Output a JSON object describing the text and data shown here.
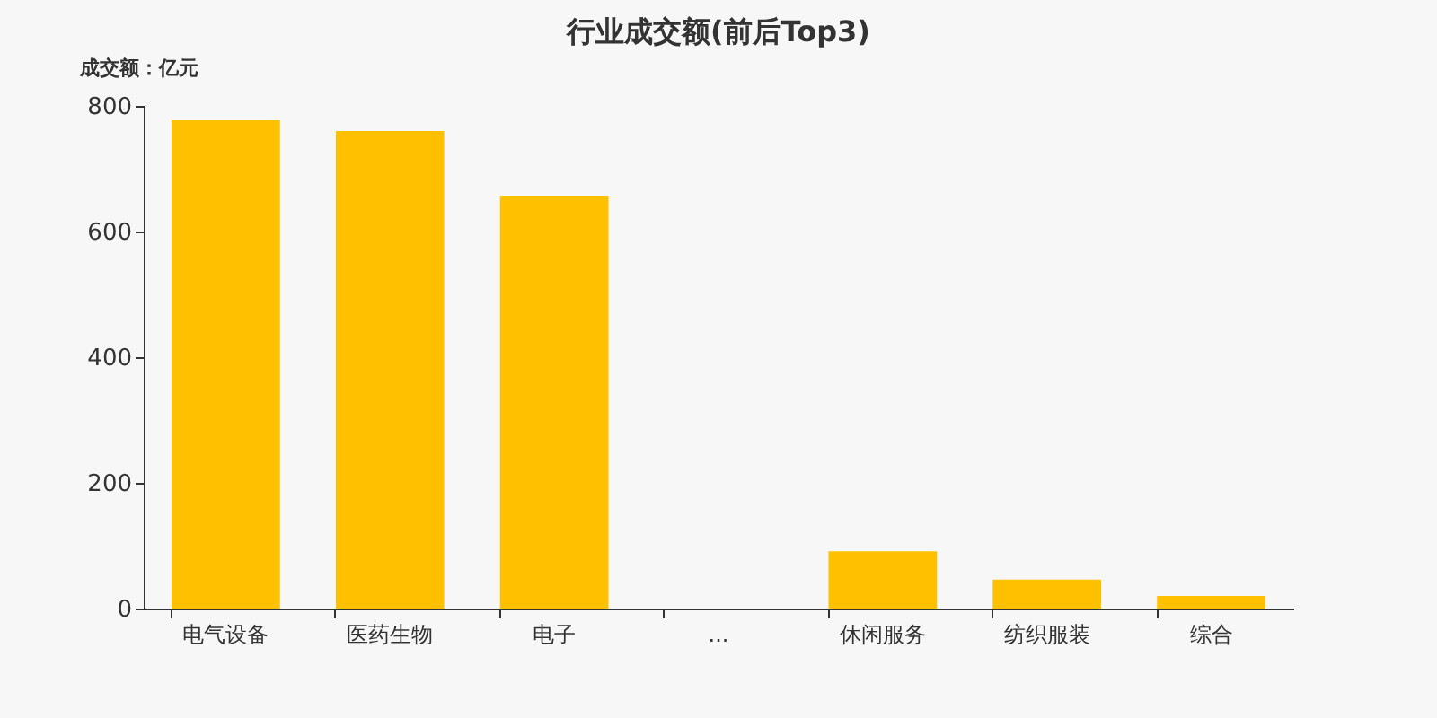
{
  "chart_data": {
    "type": "bar",
    "title": "行业成交额(前后Top3)",
    "ylabel": "成交额：亿元",
    "categories": [
      "电气设备",
      "医药生物",
      "电子",
      "...",
      "休闲服务",
      "纺织服装",
      "综合"
    ],
    "values": [
      777,
      760,
      657,
      null,
      91,
      46,
      20
    ],
    "color": "#ffc000",
    "ylim": [
      0,
      800
    ],
    "yticks": [
      0,
      200,
      400,
      600,
      800
    ],
    "grid": false
  }
}
